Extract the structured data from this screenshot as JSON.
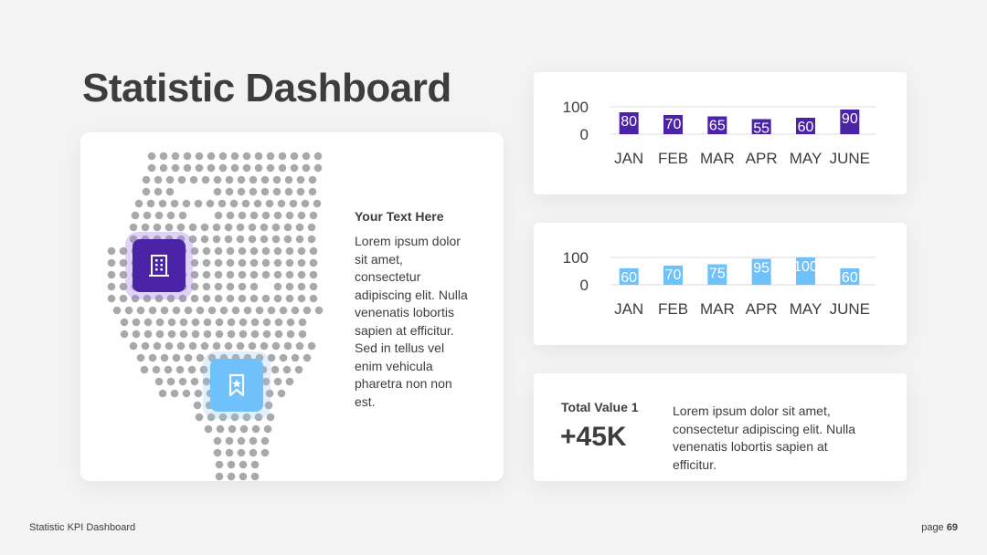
{
  "title": "Statistic Dashboard",
  "info": {
    "heading": "Your Text Here",
    "body": "Lorem ipsum dolor sit amet, consectetur adipiscing elit. Nulla venenatis lobortis sapien at efficitur. Sed in tellus vel enim vehicula pharetra non non est."
  },
  "icons": {
    "pin_primary": "building-icon",
    "pin_secondary": "bookmark-star-icon"
  },
  "chart_data": [
    {
      "type": "bar",
      "categories": [
        "JAN",
        "FEB",
        "MAR",
        "APR",
        "MAY",
        "JUNE"
      ],
      "series": [
        {
          "values": [
            80,
            70,
            65,
            55,
            60,
            90
          ]
        }
      ],
      "ylim": [
        0,
        100
      ],
      "yticks": [
        "100",
        "0"
      ],
      "color": "#4b23a6",
      "grid": true
    },
    {
      "type": "bar",
      "categories": [
        "JAN",
        "FEB",
        "MAR",
        "APR",
        "MAY",
        "JUNE"
      ],
      "series": [
        {
          "values": [
            60,
            70,
            75,
            95,
            100,
            60
          ]
        }
      ],
      "ylim": [
        0,
        100
      ],
      "yticks": [
        "100",
        "0"
      ],
      "color": "#6ec1fb",
      "grid": true
    }
  ],
  "kpi": {
    "label": "Total Value 1",
    "value": "+45K",
    "description": "Lorem ipsum dolor sit amet, consectetur adipiscing elit. Nulla venenatis lobortis sapien at efficitur."
  },
  "footer": {
    "left": "Statistic KPI Dashboard",
    "page_prefix": "page",
    "page_number": "69"
  },
  "colors": {
    "accent_primary": "#4b23a6",
    "accent_secondary": "#6ec1fb",
    "map_dot": "#a9a8ab",
    "text": "#3d3d3d"
  }
}
